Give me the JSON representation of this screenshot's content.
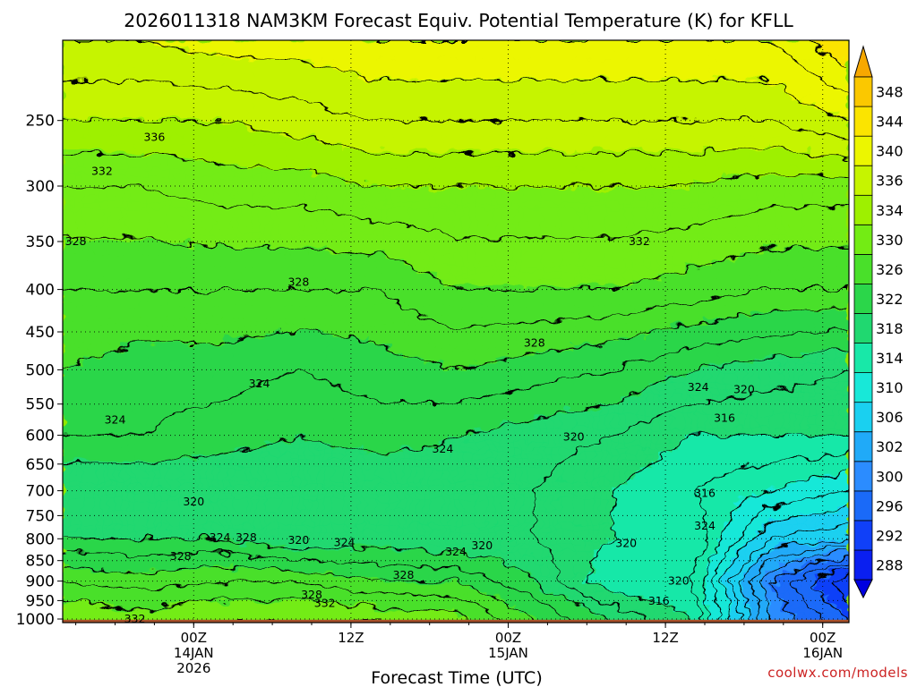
{
  "chart_data": {
    "type": "heatmap",
    "subtype": "filled-contour time-height cross-section",
    "title": "2026011318 NAM3KM Forecast Equiv. Potential Temperature (K) for KFLL",
    "xlabel": "Forecast Time (UTC)",
    "ylabel": "",
    "credit": "coolwx.com/models",
    "x_axis": {
      "unit": "hours after 2026-01-13 18Z",
      "range": [
        -4,
        56
      ],
      "ticks": [
        {
          "hours": 6,
          "line1": "00Z",
          "line2": "14JAN",
          "line3": "2026"
        },
        {
          "hours": 18,
          "line1": "12Z",
          "line2": "",
          "line3": ""
        },
        {
          "hours": 30,
          "line1": "00Z",
          "line2": "15JAN",
          "line3": ""
        },
        {
          "hours": 42,
          "line1": "12Z",
          "line2": "",
          "line3": ""
        },
        {
          "hours": 54,
          "line1": "00Z",
          "line2": "16JAN",
          "line3": ""
        }
      ]
    },
    "y_axis": {
      "unit": "hPa",
      "scale": "log",
      "range": [
        1010,
        200
      ],
      "ticks": [
        250,
        300,
        350,
        400,
        450,
        500,
        550,
        600,
        650,
        700,
        750,
        800,
        850,
        900,
        950,
        1000
      ]
    },
    "colorbar": {
      "unit": "K",
      "levels": [
        288,
        292,
        296,
        300,
        302,
        306,
        310,
        314,
        318,
        322,
        326,
        330,
        334,
        336,
        340,
        344,
        348
      ],
      "colors": [
        "#0a1ff0",
        "#1040f8",
        "#1a6af8",
        "#2b8cff",
        "#20aaf8",
        "#1ad0f0",
        "#18e8d8",
        "#18e8a8",
        "#20d870",
        "#2bd64a",
        "#49e02a",
        "#73ec14",
        "#9ef000",
        "#c6f400",
        "#ecf600",
        "#fbe400",
        "#fbc800"
      ],
      "overflow_top": "#f7a800",
      "overflow_bottom": "#0000e0"
    },
    "ground_color": "#a9512a",
    "contour_interval": 2,
    "series": [
      {
        "name": "theta_e 1000 hPa",
        "x": [
          -4,
          2,
          8,
          14,
          20,
          26,
          32,
          38,
          44,
          50,
          56
        ],
        "values": [
          332,
          331,
          332,
          332,
          332,
          331,
          326,
          322,
          318,
          302,
          296
        ]
      },
      {
        "name": "theta_e 900 hPa",
        "x": [
          -4,
          2,
          8,
          14,
          20,
          26,
          32,
          38,
          44,
          50,
          56
        ],
        "values": [
          328,
          327,
          328,
          328,
          326,
          326,
          322,
          316,
          316,
          300,
          292
        ]
      },
      {
        "name": "theta_e 800 hPa",
        "x": [
          -4,
          2,
          8,
          14,
          20,
          26,
          32,
          38,
          44,
          50,
          56
        ],
        "values": [
          322,
          322,
          322,
          320,
          321,
          320,
          320,
          318,
          318,
          308,
          306
        ]
      },
      {
        "name": "theta_e 700 hPa",
        "x": [
          -4,
          2,
          8,
          14,
          20,
          26,
          32,
          38,
          44,
          50,
          56
        ],
        "values": [
          320,
          320,
          320,
          320,
          320,
          321,
          320,
          318,
          316,
          314,
          312
        ]
      },
      {
        "name": "theta_e 600 hPa",
        "x": [
          -4,
          2,
          8,
          14,
          20,
          26,
          32,
          38,
          44,
          50,
          56
        ],
        "values": [
          324,
          324,
          323,
          322,
          323,
          322,
          321,
          320,
          318,
          318,
          318
        ]
      },
      {
        "name": "theta_e 500 hPa",
        "x": [
          -4,
          2,
          8,
          14,
          20,
          26,
          32,
          38,
          44,
          50,
          56
        ],
        "values": [
          326,
          325,
          325,
          324,
          325,
          326,
          325,
          324,
          322,
          321,
          320
        ]
      },
      {
        "name": "theta_e 400 hPa",
        "x": [
          -4,
          2,
          8,
          14,
          20,
          26,
          32,
          38,
          44,
          50,
          56
        ],
        "values": [
          328,
          328,
          328,
          328,
          328,
          330,
          330,
          330,
          329,
          328,
          328
        ]
      },
      {
        "name": "theta_e 300 hPa",
        "x": [
          -4,
          2,
          8,
          14,
          20,
          26,
          32,
          38,
          44,
          50,
          56
        ],
        "values": [
          332,
          332,
          333,
          333,
          334,
          334,
          334,
          334,
          334,
          333,
          333
        ]
      },
      {
        "name": "theta_e 250 hPa",
        "x": [
          -4,
          2,
          8,
          14,
          20,
          26,
          32,
          38,
          44,
          50,
          56
        ],
        "values": [
          336,
          336,
          336,
          337,
          338,
          338,
          338,
          338,
          338,
          338,
          340
        ]
      },
      {
        "name": "theta_e 200 hPa",
        "x": [
          -4,
          2,
          8,
          14,
          20,
          26,
          32,
          38,
          44,
          50,
          56
        ],
        "values": [
          340,
          340,
          341,
          341,
          342,
          342,
          342,
          342,
          342,
          342,
          346
        ]
      }
    ],
    "annotations": [
      {
        "text": "336",
        "hours": 3,
        "hPa": 262
      },
      {
        "text": "332",
        "hours": -1,
        "hPa": 288
      },
      {
        "text": "328",
        "hours": -3,
        "hPa": 350
      },
      {
        "text": "328",
        "hours": 14,
        "hPa": 392
      },
      {
        "text": "332",
        "hours": 40,
        "hPa": 350
      },
      {
        "text": "328",
        "hours": 32,
        "hPa": 464
      },
      {
        "text": "324",
        "hours": 11,
        "hPa": 520
      },
      {
        "text": "324",
        "hours": 25,
        "hPa": 623
      },
      {
        "text": "324",
        "hours": 44.5,
        "hPa": 525
      },
      {
        "text": "324",
        "hours": 0,
        "hPa": 575
      },
      {
        "text": "320",
        "hours": 48,
        "hPa": 528
      },
      {
        "text": "316",
        "hours": 46.5,
        "hPa": 572
      },
      {
        "text": "320",
        "hours": 35,
        "hPa": 603
      },
      {
        "text": "316",
        "hours": 45,
        "hPa": 705
      },
      {
        "text": "320",
        "hours": 6,
        "hPa": 722
      },
      {
        "text": "324",
        "hours": 45,
        "hPa": 772
      },
      {
        "text": "324",
        "hours": 8,
        "hPa": 797
      },
      {
        "text": "328",
        "hours": 10,
        "hPa": 797
      },
      {
        "text": "320",
        "hours": 14,
        "hPa": 803
      },
      {
        "text": "324",
        "hours": 17.5,
        "hPa": 808
      },
      {
        "text": "324",
        "hours": 26,
        "hPa": 830
      },
      {
        "text": "320",
        "hours": 28,
        "hPa": 815
      },
      {
        "text": "320",
        "hours": 39,
        "hPa": 810
      },
      {
        "text": "328",
        "hours": 5,
        "hPa": 840
      },
      {
        "text": "328",
        "hours": 22,
        "hPa": 885
      },
      {
        "text": "320",
        "hours": 43,
        "hPa": 900
      },
      {
        "text": "328",
        "hours": 15,
        "hPa": 935
      },
      {
        "text": "332",
        "hours": 16,
        "hPa": 957
      },
      {
        "text": "316",
        "hours": 41.5,
        "hPa": 952
      },
      {
        "text": "332",
        "hours": 1.5,
        "hPa": 1000
      }
    ]
  }
}
